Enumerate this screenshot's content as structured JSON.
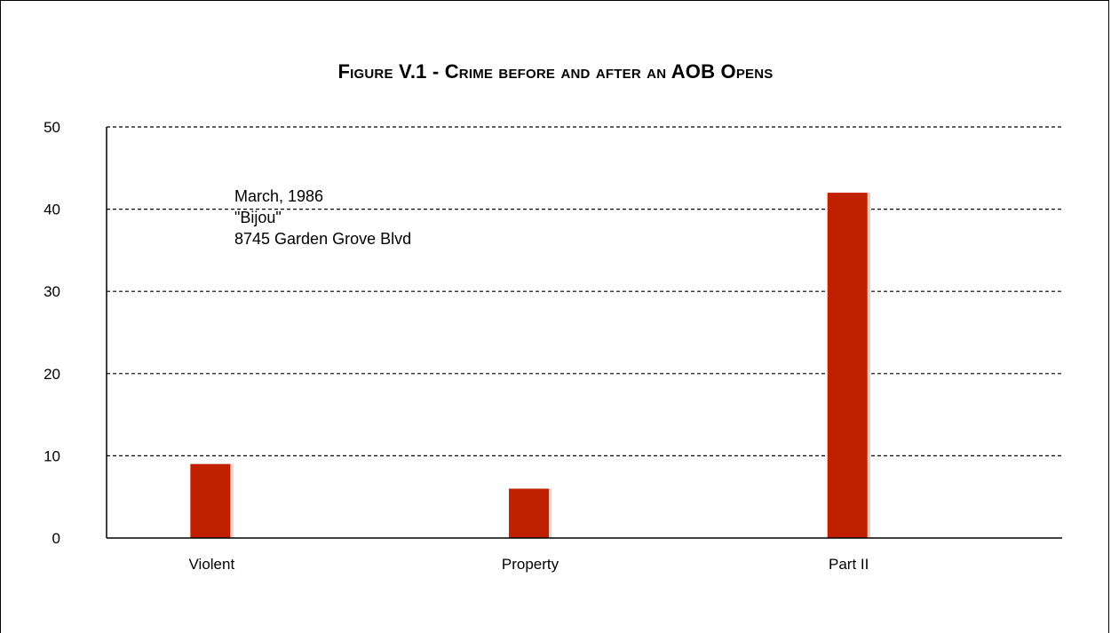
{
  "chart_data": {
    "type": "bar",
    "title": "Figure V.1 - Crime before and after an AOB Opens",
    "categories": [
      "Violent",
      "Property",
      "Part II"
    ],
    "values": [
      9,
      6,
      42
    ],
    "ylim": [
      0,
      50
    ],
    "yticks": [
      0,
      10,
      20,
      30,
      40,
      50
    ],
    "xlabel": "",
    "ylabel": "",
    "grid": true,
    "bar_color": "#c02000",
    "annotation": [
      "March, 1986",
      "\"Bijou\"",
      "8745 Garden Grove Blvd"
    ]
  }
}
